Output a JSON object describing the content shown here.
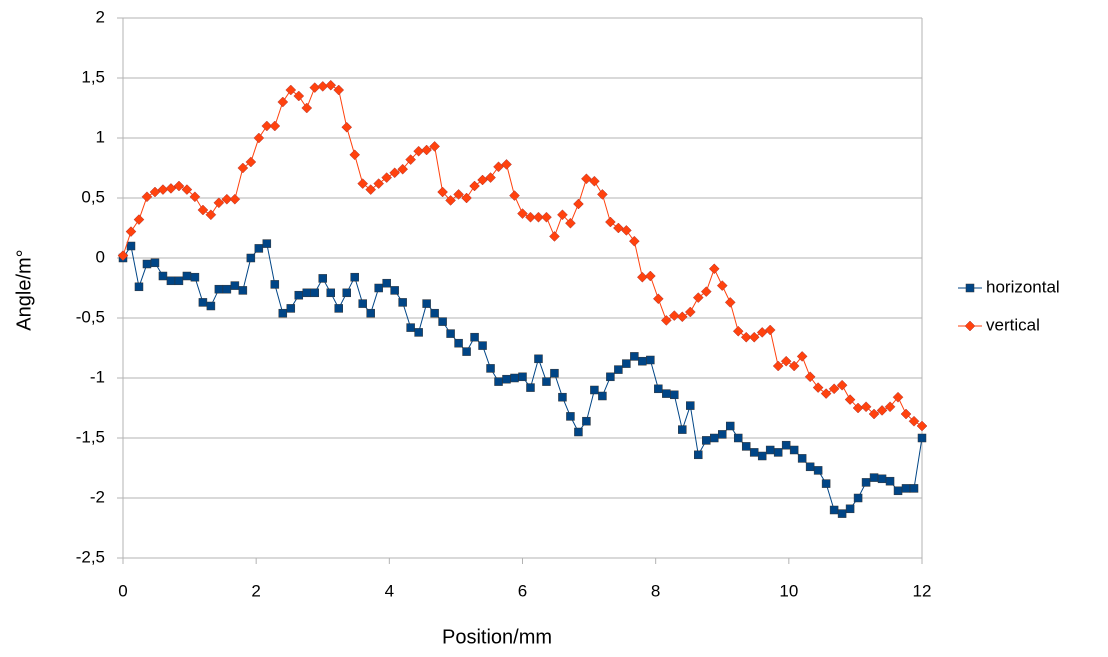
{
  "chart_data": {
    "type": "line",
    "x": [
      0,
      0.12,
      0.24,
      0.36,
      0.48,
      0.6,
      0.72,
      0.84,
      0.96,
      1.08,
      1.2,
      1.32,
      1.44,
      1.56,
      1.68,
      1.8,
      1.92,
      2.04,
      2.16,
      2.28,
      2.4,
      2.52,
      2.64,
      2.76,
      2.88,
      3,
      3.12,
      3.24,
      3.36,
      3.48,
      3.6,
      3.72,
      3.84,
      3.96,
      4.08,
      4.2,
      4.32,
      4.44,
      4.56,
      4.68,
      4.8,
      4.92,
      5.04,
      5.16,
      5.28,
      5.4,
      5.52,
      5.64,
      5.76,
      5.88,
      6,
      6.12,
      6.24,
      6.36,
      6.48,
      6.6,
      6.72,
      6.84,
      6.96,
      7.08,
      7.2,
      7.32,
      7.44,
      7.56,
      7.68,
      7.8,
      7.92,
      8.04,
      8.16,
      8.28,
      8.4,
      8.52,
      8.64,
      8.76,
      8.88,
      9,
      9.12,
      9.24,
      9.36,
      9.48,
      9.6,
      9.72,
      9.84,
      9.96,
      10.08,
      10.2,
      10.32,
      10.44,
      10.56,
      10.68,
      10.8,
      10.92,
      11.04,
      11.16,
      11.28,
      11.4,
      11.52,
      11.64,
      11.76,
      11.88,
      12
    ],
    "series": [
      {
        "name": "horizontal",
        "color": "#004586",
        "marker": "square",
        "values": [
          0.0,
          0.1,
          -0.24,
          -0.05,
          -0.04,
          -0.15,
          -0.19,
          -0.19,
          -0.15,
          -0.16,
          -0.37,
          -0.4,
          -0.26,
          -0.26,
          -0.23,
          -0.27,
          0.0,
          0.08,
          0.12,
          -0.22,
          -0.46,
          -0.42,
          -0.31,
          -0.29,
          -0.29,
          -0.17,
          -0.29,
          -0.42,
          -0.29,
          -0.16,
          -0.38,
          -0.46,
          -0.25,
          -0.21,
          -0.27,
          -0.37,
          -0.58,
          -0.62,
          -0.38,
          -0.46,
          -0.53,
          -0.63,
          -0.71,
          -0.78,
          -0.66,
          -0.73,
          -0.92,
          -1.03,
          -1.01,
          -1.0,
          -0.99,
          -1.08,
          -0.84,
          -1.03,
          -0.96,
          -1.16,
          -1.32,
          -1.45,
          -1.36,
          -1.1,
          -1.15,
          -0.99,
          -0.93,
          -0.88,
          -0.82,
          -0.86,
          -0.85,
          -1.09,
          -1.13,
          -1.14,
          -1.43,
          -1.23,
          -1.64,
          -1.52,
          -1.5,
          -1.47,
          -1.4,
          -1.5,
          -1.57,
          -1.62,
          -1.65,
          -1.6,
          -1.62,
          -1.56,
          -1.6,
          -1.67,
          -1.74,
          -1.77,
          -1.88,
          -2.1,
          -2.13,
          -2.09,
          -2.0,
          -1.87,
          -1.83,
          -1.84,
          -1.86,
          -1.94,
          -1.92,
          -1.92,
          -1.5
        ]
      },
      {
        "name": "vertical",
        "color": "#ff420e",
        "marker": "diamond",
        "values": [
          0.02,
          0.22,
          0.32,
          0.51,
          0.55,
          0.57,
          0.58,
          0.6,
          0.57,
          0.51,
          0.4,
          0.36,
          0.46,
          0.49,
          0.49,
          0.75,
          0.8,
          1.0,
          1.1,
          1.1,
          1.3,
          1.4,
          1.35,
          1.25,
          1.42,
          1.43,
          1.44,
          1.4,
          1.09,
          0.86,
          0.62,
          0.57,
          0.62,
          0.67,
          0.71,
          0.74,
          0.82,
          0.89,
          0.9,
          0.93,
          0.55,
          0.48,
          0.53,
          0.5,
          0.6,
          0.65,
          0.67,
          0.76,
          0.78,
          0.52,
          0.37,
          0.34,
          0.34,
          0.34,
          0.18,
          0.36,
          0.29,
          0.45,
          0.66,
          0.64,
          0.53,
          0.3,
          0.25,
          0.23,
          0.14,
          -0.16,
          -0.15,
          -0.34,
          -0.52,
          -0.48,
          -0.49,
          -0.45,
          -0.33,
          -0.28,
          -0.09,
          -0.23,
          -0.37,
          -0.61,
          -0.66,
          -0.66,
          -0.62,
          -0.6,
          -0.9,
          -0.86,
          -0.9,
          -0.82,
          -0.99,
          -1.08,
          -1.13,
          -1.09,
          -1.06,
          -1.18,
          -1.25,
          -1.24,
          -1.3,
          -1.27,
          -1.24,
          -1.16,
          -1.3,
          -1.36,
          -1.4
        ]
      }
    ],
    "x_label": "Position/mm",
    "y_label": "Angle/m°",
    "xlim": [
      0,
      12
    ],
    "xticks": [
      0,
      2,
      4,
      6,
      8,
      10,
      12
    ],
    "ylim": [
      -2.5,
      2
    ],
    "yticks": [
      {
        "value": -2.5,
        "label": "-2,5"
      },
      -2,
      {
        "value": -1.5,
        "label": "-1,5"
      },
      -1,
      {
        "value": -0.5,
        "label": "-0,5"
      },
      0,
      {
        "value": 0.5,
        "label": "0,5"
      },
      1,
      {
        "value": 1.5,
        "label": "1,5"
      },
      2
    ],
    "grid": true,
    "legend": "right"
  }
}
